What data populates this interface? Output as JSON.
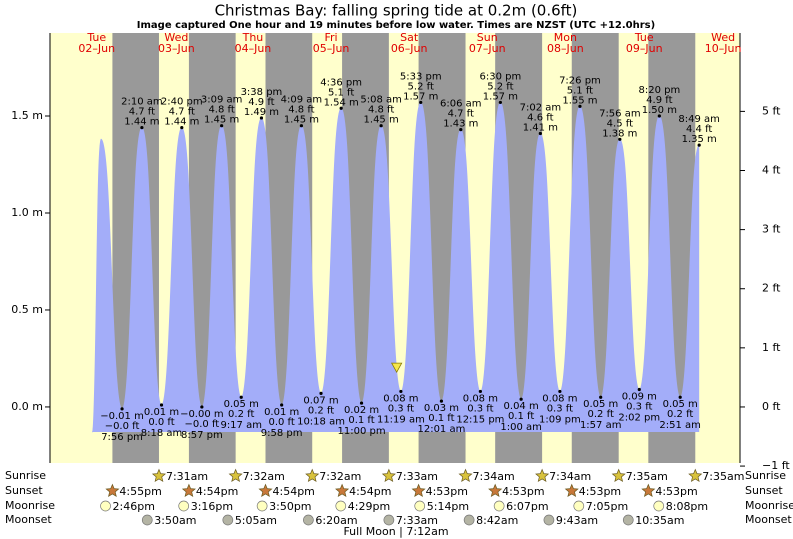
{
  "chart_data": {
    "type": "area",
    "title": "Christmas Bay: falling  spring tide at 0.2m (0.6ft)",
    "subtitle": "Image captured One hour and 19 minutes before low water. Times are NZST (UTC +12.0hrs)",
    "color": "#a3adf9",
    "day_color": "#ffffcc",
    "night_color": "#999999",
    "xlim": [
      1.89,
      10.9
    ],
    "xticks": [
      {
        "value": 2.5,
        "label": [
          "Tue",
          "02–Jun"
        ]
      },
      {
        "value": 3.54,
        "label": [
          "Wed",
          "03–Jun"
        ]
      },
      {
        "value": 4.54,
        "label": [
          "Thu",
          "04–Jun"
        ]
      },
      {
        "value": 5.56,
        "label": [
          "Fri",
          "05–Jun"
        ]
      },
      {
        "value": 6.58,
        "label": [
          "Sat",
          "06–Jun"
        ]
      },
      {
        "value": 7.6,
        "label": [
          "Sun",
          "07–Jun"
        ]
      },
      {
        "value": 8.62,
        "label": [
          "Mon",
          "08–Jun"
        ]
      },
      {
        "value": 9.65,
        "label": [
          "Tue",
          "09–Jun"
        ]
      },
      {
        "value": 10.68,
        "label": [
          "Wed",
          "10–Jun"
        ]
      }
    ],
    "ylim": [
      -0.289,
      1.928
    ],
    "yticks": [
      {
        "value": 0,
        "label": "0.0 m"
      },
      {
        "value": 0.5,
        "label": "0.5 m"
      },
      {
        "value": 1.0,
        "label": "1.0 m"
      },
      {
        "value": 1.5,
        "label": "1.5 m"
      }
    ],
    "y2lim": [
      -0.948,
      6.326
    ],
    "y2ticks": [
      {
        "value": -1,
        "label": "−1 ft"
      },
      {
        "value": 0,
        "label": "0 ft"
      },
      {
        "value": 1,
        "label": "1 ft"
      },
      {
        "value": 2,
        "label": "2 ft"
      },
      {
        "value": 3,
        "label": "3 ft"
      },
      {
        "value": 4,
        "label": "4 ft"
      },
      {
        "value": 5,
        "label": "5 ft"
      }
    ],
    "x": [
      2.44,
      2.556,
      2.831,
      3.09,
      3.346,
      3.611,
      3.873,
      4.131,
      4.387,
      4.651,
      4.915,
      5.173,
      5.429,
      5.692,
      5.958,
      6.214,
      6.472,
      6.731,
      7.001,
      7.254,
      7.51,
      7.771,
      8.042,
      8.293,
      8.548,
      8.81,
      9.081,
      9.331,
      9.585,
      9.847,
      10.119,
      10.367
    ],
    "values": [
      -0.13,
      1.38,
      -0.01,
      1.44,
      0.01,
      1.44,
      0,
      1.45,
      0.05,
      1.49,
      0.01,
      1.45,
      0.07,
      1.54,
      0.02,
      1.45,
      0.08,
      1.57,
      0.03,
      1.43,
      0.08,
      1.57,
      0.04,
      1.41,
      0.08,
      1.55,
      0.05,
      1.38,
      0.09,
      1.5,
      0.05,
      1.35
    ],
    "value_labels": [
      null,
      null,
      "−0.01 m",
      "1.44 m",
      "0.01 m",
      "1.44 m",
      "−0.00 m",
      "1.45 m",
      "0.05 m",
      "1.49 m",
      "0.01 m",
      "1.45 m",
      "0.07 m",
      "1.54 m",
      "0.02 m",
      "1.45 m",
      "0.08 m",
      "1.57 m",
      "0.03 m",
      "1.43 m",
      "0.08 m",
      "1.57 m",
      "0.04 m",
      "1.41 m",
      "0.08 m",
      "1.55 m",
      "0.05 m",
      "1.38 m",
      "0.09 m",
      "1.50 m",
      "0.05 m",
      "1.35 m"
    ],
    "ft_labels": [
      null,
      null,
      "−0.0 ft",
      "4.7 ft",
      "0.0 ft",
      "4.7 ft",
      "−0.0 ft",
      "4.8 ft",
      "0.2 ft",
      "4.9 ft",
      "0.0 ft",
      "4.8 ft",
      "0.2 ft",
      "5.1 ft",
      "0.1 ft",
      "4.8 ft",
      "0.3 ft",
      "5.2 ft",
      "0.1 ft",
      "4.7 ft",
      "0.3 ft",
      "5.2 ft",
      "0.1 ft",
      "4.6 ft",
      "0.3 ft",
      "5.1 ft",
      "0.2 ft",
      "4.5 ft",
      "0.3 ft",
      "4.9 ft",
      "0.2 ft",
      "4.4 ft"
    ],
    "time_labels": [
      null,
      null,
      "7:56 pm",
      "2:10 am",
      "8:18 am",
      "2:40 pm",
      "8:57 pm",
      "3:09 am",
      "9:17 am",
      "3:38 pm",
      "9:58 pm",
      "4:09 am",
      "10:18 am",
      "4:36 pm",
      "11:00 pm",
      "5:08 am",
      "11:19 am",
      "5:33 pm",
      "12:01 am",
      "6:06 am",
      "12:15 pm",
      "6:30 pm",
      "1:00 am",
      "7:02 am",
      "1:09 pm",
      "7:26 pm",
      "1:57 am",
      "7:56 am",
      "2:02 pm",
      "8:20 pm",
      "2:51 am",
      "8:49 am"
    ],
    "now": {
      "x": 6.417,
      "value": 0.2
    },
    "events": [
      {
        "name": "Sunrise",
        "marker": "star",
        "color": "#d8c23c",
        "x": [
          3.313,
          4.314,
          5.314,
          6.315,
          7.316,
          8.316,
          9.316,
          10.316
        ],
        "labels": [
          "7:31am",
          "7:32am",
          "7:32am",
          "7:33am",
          "7:34am",
          "7:34am",
          "7:35am",
          "7:35am"
        ]
      },
      {
        "name": "Sunset",
        "marker": "star",
        "color": "#c8783a",
        "x": [
          2.705,
          3.704,
          4.704,
          5.704,
          6.703,
          7.703,
          8.703,
          9.703
        ],
        "labels": [
          "4:55pm",
          "4:54pm",
          "4:54pm",
          "4:54pm",
          "4:53pm",
          "4:53pm",
          "4:53pm",
          "4:53pm"
        ]
      },
      {
        "name": "Moonrise",
        "marker": "circle",
        "color": "#ffffc0",
        "x": [
          2.615,
          3.636,
          4.66,
          5.687,
          6.718,
          7.755,
          8.795,
          9.839
        ],
        "labels": [
          "2:46pm",
          "3:16pm",
          "3:50pm",
          "4:29pm",
          "5:14pm",
          "6:07pm",
          "7:05pm",
          "8:08pm"
        ]
      },
      {
        "name": "Moonset",
        "marker": "circle",
        "color": "#b4b4a4",
        "x": [
          3.16,
          4.212,
          5.264,
          6.315,
          7.363,
          8.405,
          9.441
        ],
        "labels": [
          "3:50am",
          "5:05am",
          "6:20am",
          "7:33am",
          "8:42am",
          "9:43am",
          "10:35am"
        ]
      }
    ],
    "moon_phase": "Full Moon | 7:12am"
  }
}
